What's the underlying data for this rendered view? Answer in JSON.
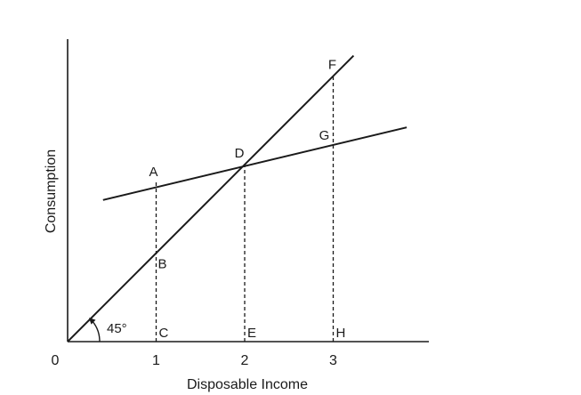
{
  "chart_data": {
    "type": "line",
    "xlabel": "Disposable Income",
    "ylabel": "Consumption",
    "origin_label": "0",
    "x_ticks": [
      {
        "value": 1,
        "label": "1"
      },
      {
        "value": 2,
        "label": "2"
      },
      {
        "value": 3,
        "label": "3"
      }
    ],
    "angle_label": "45°",
    "series": [
      {
        "id": "forty-five-degree",
        "x": [
          0,
          3.23
        ],
        "y": [
          0,
          3.23
        ]
      },
      {
        "id": "consumption",
        "x": [
          0.4,
          3.83
        ],
        "y": [
          1.6,
          2.42
        ]
      }
    ],
    "points": [
      {
        "label": "A",
        "x": 1,
        "y": 1.8
      },
      {
        "label": "B",
        "x": 1,
        "y": 1
      },
      {
        "label": "C",
        "x": 1,
        "y": 0
      },
      {
        "label": "D",
        "x": 2,
        "y": 2
      },
      {
        "label": "E",
        "x": 2,
        "y": 0
      },
      {
        "label": "F",
        "x": 3,
        "y": 3
      },
      {
        "label": "G",
        "x": 3,
        "y": 2.24
      },
      {
        "label": "H",
        "x": 3,
        "y": 0
      }
    ],
    "dashed_verticals": [
      1,
      2,
      3
    ],
    "grid": false,
    "legend": "none"
  }
}
